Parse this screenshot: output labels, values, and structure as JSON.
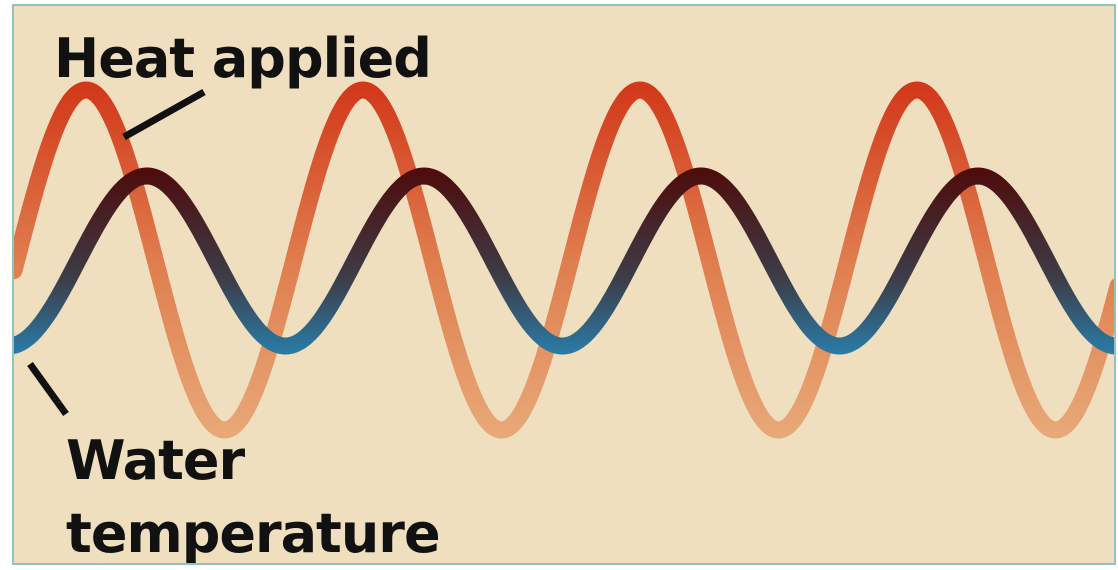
{
  "labels": {
    "heat": "Heat applied",
    "water_line1": "Water",
    "water_line2": "temperature"
  },
  "colors": {
    "background": "#efdfbf",
    "border": "#8fc3c0",
    "heat_hot": "#d2381a",
    "heat_mid": "#df7d4e",
    "heat_cool": "#e8a877",
    "water_hot": "#4e0c0c",
    "water_mid": "#3d3d48",
    "water_cool": "#2a7aa4",
    "leader": "#111111"
  },
  "waves": {
    "cycles_visible": 4,
    "phase_lag_fraction_of_cycle": 0.22,
    "series": [
      {
        "id": "heat",
        "relative_amplitude": 1.0
      },
      {
        "id": "water",
        "relative_amplitude": 0.5
      }
    ]
  }
}
